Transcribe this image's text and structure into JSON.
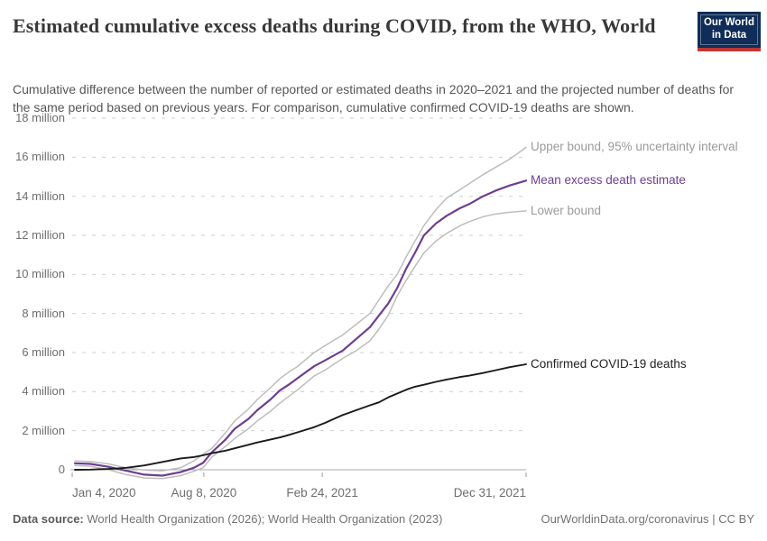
{
  "header": {
    "title": "Estimated cumulative excess deaths during COVID, from the WHO, World",
    "subtitle": "Cumulative difference between the number of reported or estimated deaths in 2020–2021 and the projected number of deaths for the same period based on previous years. For comparison, cumulative confirmed COVID-19 deaths are shown.",
    "logo": {
      "line1": "Our World",
      "line2": "in Data",
      "bg_color": "#0f2d58",
      "accent_color": "#bf3836"
    }
  },
  "footer": {
    "datasource_label": "Data source:",
    "datasource_text": " World Health Organization (2026); World Health Organization (2023)",
    "credit": "OurWorldinData.org/coronavirus | CC BY"
  },
  "chart_data": {
    "type": "line",
    "unit": "deaths (millions)",
    "grid": "dashed-horizontal",
    "legend_position": "right-of-line-ends",
    "ylim": [
      -0.6,
      18
    ],
    "y_ticks": [
      {
        "label": "0",
        "v": 0
      },
      {
        "label": "2 million",
        "v": 2
      },
      {
        "label": "4 million",
        "v": 4
      },
      {
        "label": "6 million",
        "v": 6
      },
      {
        "label": "8 million",
        "v": 8
      },
      {
        "label": "10 million",
        "v": 10
      },
      {
        "label": "12 million",
        "v": 12
      },
      {
        "label": "14 million",
        "v": 14
      },
      {
        "label": "16 million",
        "v": 16
      },
      {
        "label": "18 million",
        "v": 18
      }
    ],
    "x_ticks": [
      {
        "label": "Jan 4, 2020",
        "f": 0.0,
        "align": "left"
      },
      {
        "label": "Aug 8, 2020",
        "f": 0.29,
        "align": "center"
      },
      {
        "label": "Feb 24, 2021",
        "f": 0.551,
        "align": "center"
      },
      {
        "label": "Dec 31, 2021",
        "f": 1.0,
        "align": "right"
      }
    ],
    "f": [
      0.006,
      0.04,
      0.08,
      0.119,
      0.159,
      0.199,
      0.239,
      0.268,
      0.288,
      0.308,
      0.338,
      0.358,
      0.388,
      0.408,
      0.437,
      0.457,
      0.477,
      0.497,
      0.533,
      0.557,
      0.596,
      0.626,
      0.656,
      0.676,
      0.696,
      0.716,
      0.736,
      0.755,
      0.775,
      0.801,
      0.825,
      0.855,
      0.875,
      0.905,
      0.934,
      0.964,
      1.0
    ],
    "series": [
      {
        "name": "Upper bound, 95% uncertainty interval",
        "color": "#bdbdbd",
        "label_color": "#9a9a9a",
        "width": 1.5,
        "values": [
          0.45,
          0.42,
          0.3,
          0.1,
          -0.02,
          -0.05,
          0.1,
          0.45,
          0.8,
          1.1,
          1.9,
          2.5,
          3.1,
          3.6,
          4.2,
          4.65,
          5.0,
          5.3,
          6.0,
          6.35,
          6.9,
          7.45,
          8.0,
          8.7,
          9.4,
          10.0,
          10.9,
          11.7,
          12.5,
          13.3,
          13.9,
          14.35,
          14.65,
          15.1,
          15.5,
          15.9,
          16.5
        ]
      },
      {
        "name": "Lower bound",
        "color": "#bdbdbd",
        "label_color": "#9a9a9a",
        "width": 1.5,
        "values": [
          0.22,
          0.18,
          0.0,
          -0.25,
          -0.42,
          -0.45,
          -0.3,
          -0.08,
          0.1,
          0.65,
          1.2,
          1.6,
          2.1,
          2.5,
          3.0,
          3.4,
          3.75,
          4.1,
          4.8,
          5.1,
          5.7,
          6.1,
          6.6,
          7.2,
          7.9,
          8.9,
          9.7,
          10.4,
          11.1,
          11.7,
          12.1,
          12.5,
          12.7,
          12.95,
          13.1,
          13.18,
          13.25
        ]
      },
      {
        "name": "Mean excess death estimate",
        "color": "#6d3e91",
        "label_color": "#6d3e91",
        "width": 2.2,
        "values": [
          0.33,
          0.3,
          0.15,
          -0.05,
          -0.25,
          -0.3,
          -0.12,
          0.1,
          0.35,
          0.9,
          1.55,
          2.1,
          2.6,
          3.05,
          3.6,
          4.05,
          4.35,
          4.7,
          5.3,
          5.6,
          6.1,
          6.7,
          7.3,
          7.9,
          8.5,
          9.3,
          10.3,
          11.1,
          12.0,
          12.6,
          13.0,
          13.4,
          13.6,
          14.0,
          14.3,
          14.55,
          14.8
        ]
      },
      {
        "name": "Confirmed COVID-19 deaths",
        "color": "#1a1a1a",
        "label_color": "#222222",
        "width": 1.9,
        "values": [
          0.0,
          0.01,
          0.04,
          0.1,
          0.22,
          0.4,
          0.58,
          0.65,
          0.74,
          0.85,
          0.98,
          1.1,
          1.28,
          1.4,
          1.55,
          1.65,
          1.78,
          1.92,
          2.18,
          2.4,
          2.8,
          3.05,
          3.3,
          3.45,
          3.7,
          3.9,
          4.1,
          4.25,
          4.35,
          4.5,
          4.62,
          4.75,
          4.82,
          4.95,
          5.1,
          5.25,
          5.4
        ]
      }
    ],
    "colors": {
      "grid": "#cfcfcf",
      "zero_line": "#a8a8a8",
      "tick_text": "#6e6e6e"
    }
  }
}
